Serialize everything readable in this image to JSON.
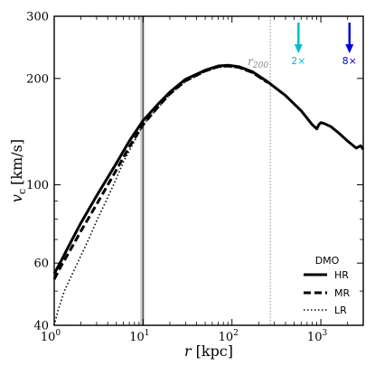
{
  "chart_data": {
    "type": "line",
    "x_scale": "log",
    "y_scale": "log",
    "xlim": [
      1,
      3000
    ],
    "ylim": [
      40,
      300
    ],
    "xlabel_parts": [
      "r",
      "[kpc]"
    ],
    "ylabel_parts": [
      "v",
      "c",
      "[km/s]"
    ],
    "x_ticks": [
      {
        "value": 1,
        "base": "10",
        "exp": "0"
      },
      {
        "value": 10,
        "base": "10",
        "exp": "1"
      },
      {
        "value": 100,
        "base": "10",
        "exp": "2"
      },
      {
        "value": 1000,
        "base": "10",
        "exp": "3"
      }
    ],
    "y_ticks": [
      {
        "value": 40,
        "label": "40"
      },
      {
        "value": 60,
        "label": "60"
      },
      {
        "value": 100,
        "label": "100"
      },
      {
        "value": 200,
        "label": "200"
      },
      {
        "value": 300,
        "label": "300"
      }
    ],
    "series": [
      {
        "name": "HR",
        "style": "solid",
        "color": "#000000",
        "x": [
          1.0,
          1.2,
          1.5,
          2.0,
          3.0,
          5.0,
          7.0,
          10.0,
          15.0,
          20.0,
          30.0,
          50.0,
          70.0,
          90.0,
          120.0,
          170.0,
          250.0,
          400.0,
          600.0,
          800.0,
          900.0,
          950.0,
          1000.0,
          1100.0,
          1300.0,
          1600.0,
          2000.0,
          2500.0,
          2800.0,
          3000.0
        ],
        "values": [
          56,
          61,
          68,
          78,
          93,
          115,
          133,
          152,
          170,
          183,
          199,
          211,
          217,
          218,
          216,
          209,
          196,
          179,
          162,
          148,
          144,
          148,
          150,
          149,
          146,
          140,
          133,
          127,
          129,
          126
        ]
      },
      {
        "name": "MR",
        "style": "dashed",
        "color": "#000000",
        "x": [
          1.0,
          1.2,
          1.5,
          2.0,
          3.0,
          5.0,
          7.0,
          10.0,
          15.0,
          20.0,
          30.0,
          50.0,
          70.0,
          90.0,
          120.0,
          170.0,
          250.0
        ],
        "values": [
          54,
          59,
          65,
          74,
          88,
          110,
          128,
          148,
          167,
          181,
          197,
          210,
          216,
          217,
          215,
          208,
          195
        ]
      },
      {
        "name": "LR",
        "style": "dotted",
        "color": "#000000",
        "x": [
          1.0,
          1.1,
          1.3,
          1.6,
          2.0,
          2.5,
          3.0,
          4.0,
          5.0,
          6.0,
          8.0,
          10.0,
          15.0,
          20.0,
          30.0,
          50.0,
          70.0,
          90.0,
          120.0,
          170.0,
          250.0
        ],
        "values": [
          40,
          44,
          50,
          56,
          63,
          71,
          79,
          92,
          104,
          116,
          133,
          148,
          166,
          180,
          196,
          209,
          215,
          216,
          214,
          207,
          194
        ]
      }
    ],
    "r200": {
      "x": 270,
      "label_base": "r",
      "label_sub": "200",
      "color": "#888888"
    },
    "band": {
      "x0": 9.3,
      "x1": 10.3,
      "color": "#cccccc"
    },
    "band_line_x": 10.0,
    "arrows": [
      {
        "x": 560,
        "label": "2×",
        "color": "#00bcd4"
      },
      {
        "x": 2100,
        "label": "8×",
        "color": "#0000dd"
      }
    ],
    "legend": {
      "title": "DMO",
      "entries": [
        "HR",
        "MR",
        "LR"
      ],
      "placement": "bottom-right"
    }
  }
}
